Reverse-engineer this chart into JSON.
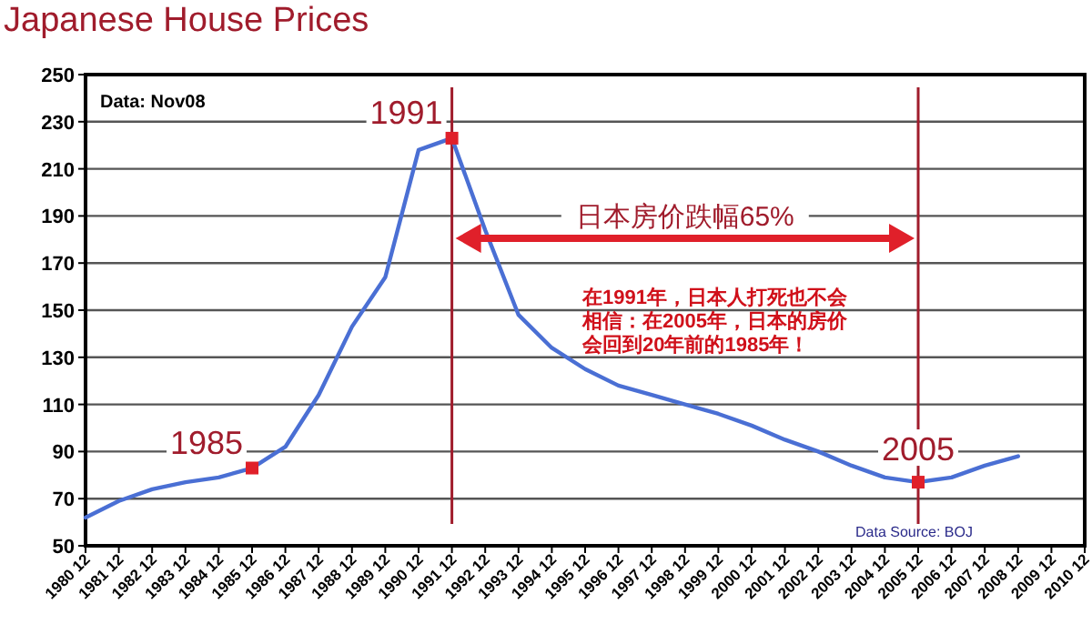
{
  "chart_data": {
    "type": "line",
    "title": "Japanese House Prices",
    "categories": [
      "1980 12",
      "1981 12",
      "1982 12",
      "1983 12",
      "1984 12",
      "1985 12",
      "1986 12",
      "1987 12",
      "1988 12",
      "1989 12",
      "1990 12",
      "1991 12",
      "1992 12",
      "1993 12",
      "1994 12",
      "1995 12",
      "1996 12",
      "1997 12",
      "1998 12",
      "1999 12",
      "2000 12",
      "2001 12",
      "2002 12",
      "2003 12",
      "2004 12",
      "2005 12",
      "2006 12",
      "2007 12",
      "2008 12",
      "2009 12",
      "2010 12"
    ],
    "series": [
      {
        "color": "#4a6fd4",
        "values": [
          62,
          69,
          74,
          77,
          79,
          83,
          92,
          114,
          143,
          164,
          218,
          223,
          184,
          148,
          134,
          125,
          118,
          114,
          110,
          106,
          101,
          95,
          90,
          84,
          79,
          77,
          79,
          84,
          88,
          null,
          null
        ]
      }
    ],
    "ylim": [
      50,
      250
    ],
    "yticks": [
      50,
      70,
      90,
      110,
      130,
      150,
      170,
      190,
      210,
      230,
      250
    ],
    "grid": "y",
    "marker": "none",
    "line_style": "solid",
    "ref_lines": [
      {
        "axis": "x",
        "value": "1991 12",
        "color": "#a01c2c"
      },
      {
        "axis": "x",
        "value": "2005 12",
        "color": "#a01c2c"
      }
    ],
    "annotations": [
      "Data: Nov08",
      "日本房价跌幅65%",
      "在1991年，日本人打死也不会相信：在2005年，日本的房价会回到20年前的1985年！",
      "Data Source: BOJ",
      {
        "text": "1985",
        "x": "1985 12",
        "y": 83
      },
      {
        "text": "1991",
        "x": "1991 12",
        "y": 223
      },
      {
        "text": "2005",
        "x": "2005 12",
        "y": 77
      }
    ]
  }
}
